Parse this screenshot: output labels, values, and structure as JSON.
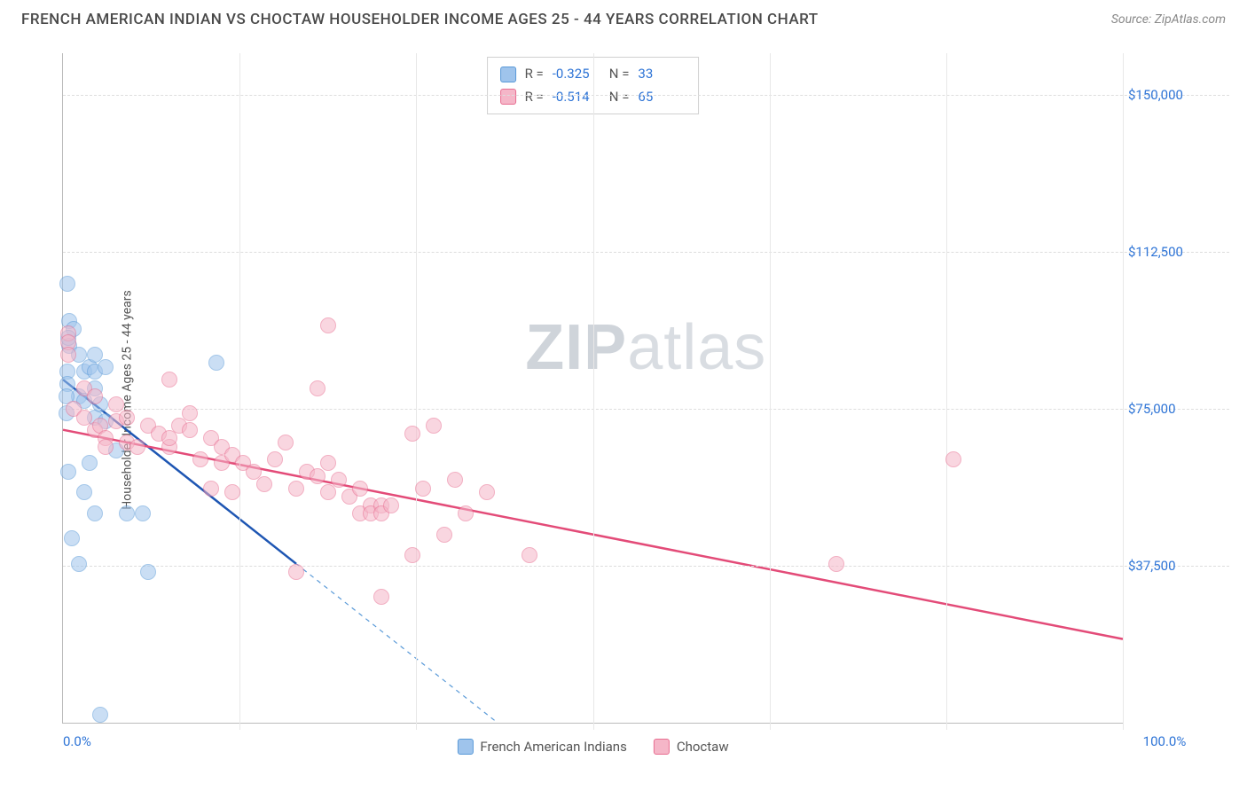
{
  "header": {
    "title": "FRENCH AMERICAN INDIAN VS CHOCTAW HOUSEHOLDER INCOME AGES 25 - 44 YEARS CORRELATION CHART",
    "source": "Source: ZipAtlas.com"
  },
  "watermark": {
    "bold": "ZIP",
    "rest": "atlas"
  },
  "chart": {
    "type": "scatter",
    "ylabel": "Householder Income Ages 25 - 44 years",
    "xlim": [
      0,
      100
    ],
    "ylim": [
      0,
      160000
    ],
    "xtick_labels": {
      "min": "0.0%",
      "max": "100.0%"
    },
    "xtick_positions": [
      0,
      16.67,
      33.33,
      50,
      66.67,
      83.33,
      100
    ],
    "y_gridlines": [
      {
        "v": 37500,
        "label": "$37,500"
      },
      {
        "v": 75000,
        "label": "$75,000"
      },
      {
        "v": 112500,
        "label": "$112,500"
      },
      {
        "v": 150000,
        "label": "$150,000"
      }
    ],
    "background_color": "#ffffff",
    "grid_color": "#dddddd",
    "tick_color": "#2e74d6",
    "axis_color": "#bbbbbb",
    "series": [
      {
        "name": "French American Indians",
        "fill_color": "#9fc4ec",
        "stroke_color": "#5a9ad8",
        "fill_opacity": 0.55,
        "marker_radius_px": 9,
        "trend_color": "#1e56b3",
        "trend_width": 2.5,
        "trend_p1": {
          "x": 0,
          "y": 82000
        },
        "trend_p2": {
          "x": 22,
          "y": 38000
        },
        "trend_dash_to_zero": true,
        "R": "-0.325",
        "N": "33",
        "points": [
          {
            "x": 0.4,
            "y": 105000
          },
          {
            "x": 0.6,
            "y": 96000
          },
          {
            "x": 0.6,
            "y": 90000
          },
          {
            "x": 1.0,
            "y": 94000
          },
          {
            "x": 0.4,
            "y": 84000
          },
          {
            "x": 0.4,
            "y": 81000
          },
          {
            "x": 1.5,
            "y": 88000
          },
          {
            "x": 2.0,
            "y": 84000
          },
          {
            "x": 2.5,
            "y": 85000
          },
          {
            "x": 3.0,
            "y": 88000
          },
          {
            "x": 3.0,
            "y": 84000
          },
          {
            "x": 3.0,
            "y": 80000
          },
          {
            "x": 4.0,
            "y": 85000
          },
          {
            "x": 14.5,
            "y": 86000
          },
          {
            "x": 1.5,
            "y": 78000
          },
          {
            "x": 0.3,
            "y": 78000
          },
          {
            "x": 0.3,
            "y": 74000
          },
          {
            "x": 2.0,
            "y": 77000
          },
          {
            "x": 3.0,
            "y": 73000
          },
          {
            "x": 3.5,
            "y": 76000
          },
          {
            "x": 4.0,
            "y": 72000
          },
          {
            "x": 5.0,
            "y": 65000
          },
          {
            "x": 0.5,
            "y": 60000
          },
          {
            "x": 2.5,
            "y": 62000
          },
          {
            "x": 2.0,
            "y": 55000
          },
          {
            "x": 3.0,
            "y": 50000
          },
          {
            "x": 6.0,
            "y": 50000
          },
          {
            "x": 7.5,
            "y": 50000
          },
          {
            "x": 0.8,
            "y": 44000
          },
          {
            "x": 1.5,
            "y": 38000
          },
          {
            "x": 8.0,
            "y": 36000
          },
          {
            "x": 3.5,
            "y": 2000
          },
          {
            "x": 0.5,
            "y": 92000
          }
        ]
      },
      {
        "name": "Choctaw",
        "fill_color": "#f5b6c8",
        "stroke_color": "#e86e91",
        "fill_opacity": 0.55,
        "marker_radius_px": 9,
        "trend_color": "#e34b78",
        "trend_width": 2.5,
        "trend_p1": {
          "x": 0,
          "y": 70000
        },
        "trend_p2": {
          "x": 100,
          "y": 20000
        },
        "trend_dash_to_zero": false,
        "R": "-0.514",
        "N": "65",
        "points": [
          {
            "x": 0.5,
            "y": 93000
          },
          {
            "x": 0.5,
            "y": 91000
          },
          {
            "x": 0.5,
            "y": 88000
          },
          {
            "x": 25,
            "y": 95000
          },
          {
            "x": 2,
            "y": 80000
          },
          {
            "x": 3,
            "y": 78000
          },
          {
            "x": 10,
            "y": 82000
          },
          {
            "x": 24,
            "y": 80000
          },
          {
            "x": 1,
            "y": 75000
          },
          {
            "x": 2,
            "y": 73000
          },
          {
            "x": 3,
            "y": 70000
          },
          {
            "x": 3.5,
            "y": 71000
          },
          {
            "x": 4,
            "y": 68000
          },
          {
            "x": 4,
            "y": 66000
          },
          {
            "x": 5,
            "y": 76000
          },
          {
            "x": 5,
            "y": 72000
          },
          {
            "x": 6,
            "y": 67000
          },
          {
            "x": 6,
            "y": 73000
          },
          {
            "x": 7,
            "y": 66000
          },
          {
            "x": 8,
            "y": 71000
          },
          {
            "x": 9,
            "y": 69000
          },
          {
            "x": 10,
            "y": 66000
          },
          {
            "x": 10,
            "y": 68000
          },
          {
            "x": 11,
            "y": 71000
          },
          {
            "x": 12,
            "y": 70000
          },
          {
            "x": 13,
            "y": 63000
          },
          {
            "x": 14,
            "y": 68000
          },
          {
            "x": 15,
            "y": 62000
          },
          {
            "x": 15,
            "y": 66000
          },
          {
            "x": 16,
            "y": 64000
          },
          {
            "x": 17,
            "y": 62000
          },
          {
            "x": 18,
            "y": 60000
          },
          {
            "x": 14,
            "y": 56000
          },
          {
            "x": 16,
            "y": 55000
          },
          {
            "x": 19,
            "y": 57000
          },
          {
            "x": 20,
            "y": 63000
          },
          {
            "x": 21,
            "y": 67000
          },
          {
            "x": 22,
            "y": 56000
          },
          {
            "x": 23,
            "y": 60000
          },
          {
            "x": 24,
            "y": 59000
          },
          {
            "x": 25,
            "y": 62000
          },
          {
            "x": 25,
            "y": 55000
          },
          {
            "x": 26,
            "y": 58000
          },
          {
            "x": 27,
            "y": 54000
          },
          {
            "x": 28,
            "y": 56000
          },
          {
            "x": 28,
            "y": 50000
          },
          {
            "x": 29,
            "y": 52000
          },
          {
            "x": 29,
            "y": 50000
          },
          {
            "x": 30,
            "y": 52000
          },
          {
            "x": 30,
            "y": 50000
          },
          {
            "x": 31,
            "y": 52000
          },
          {
            "x": 33,
            "y": 69000
          },
          {
            "x": 34,
            "y": 56000
          },
          {
            "x": 35,
            "y": 71000
          },
          {
            "x": 36,
            "y": 45000
          },
          {
            "x": 37,
            "y": 58000
          },
          {
            "x": 38,
            "y": 50000
          },
          {
            "x": 40,
            "y": 55000
          },
          {
            "x": 22,
            "y": 36000
          },
          {
            "x": 30,
            "y": 30000
          },
          {
            "x": 33,
            "y": 40000
          },
          {
            "x": 44,
            "y": 40000
          },
          {
            "x": 73,
            "y": 38000
          },
          {
            "x": 84,
            "y": 63000
          },
          {
            "x": 12,
            "y": 74000
          }
        ]
      }
    ],
    "correlation_box_border": "#d0d0d0",
    "legend_position": "bottom-center",
    "legend_items": [
      {
        "label": "French American Indians",
        "fill": "#9fc4ec",
        "stroke": "#5a9ad8"
      },
      {
        "label": "Choctaw",
        "fill": "#f5b6c8",
        "stroke": "#e86e91"
      }
    ]
  }
}
